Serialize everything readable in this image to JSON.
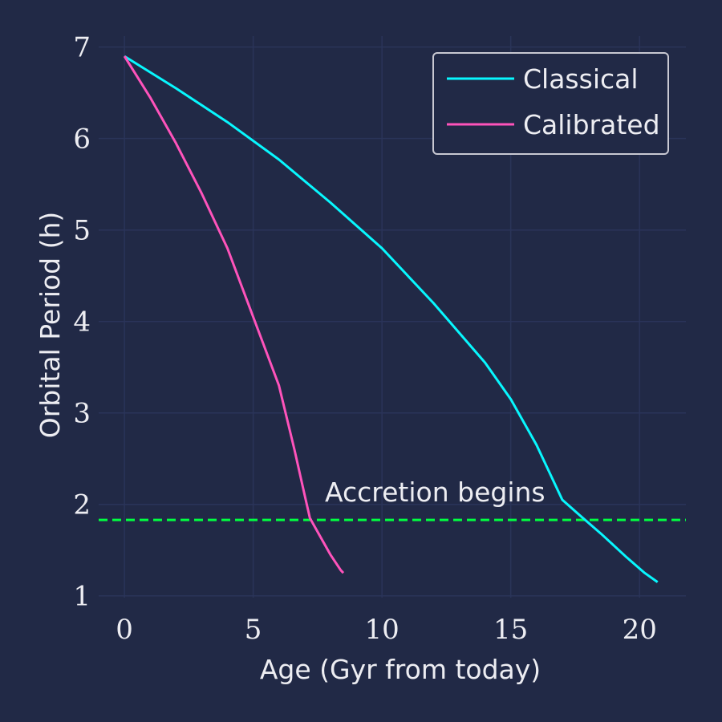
{
  "chart_data": {
    "type": "line",
    "xlabel": "Age (Gyr from today)",
    "ylabel": "Orbital Period (h)",
    "xlim": [
      -1.0,
      21.8
    ],
    "ylim": [
      0.98,
      7.12
    ],
    "xticks": [
      0,
      5,
      10,
      15,
      20
    ],
    "yticks": [
      1,
      2,
      3,
      4,
      5,
      6,
      7
    ],
    "grid": true,
    "legend_position": "top-right",
    "series": [
      {
        "name": "Classical",
        "color": "#08f7fe",
        "points": [
          [
            0,
            6.9
          ],
          [
            2,
            6.55
          ],
          [
            4,
            6.18
          ],
          [
            6,
            5.77
          ],
          [
            8,
            5.3
          ],
          [
            10,
            4.8
          ],
          [
            12,
            4.2
          ],
          [
            14,
            3.55
          ],
          [
            15,
            3.15
          ],
          [
            16,
            2.65
          ],
          [
            17,
            2.05
          ],
          [
            17.6,
            1.9
          ],
          [
            18.5,
            1.68
          ],
          [
            19.5,
            1.42
          ],
          [
            20.2,
            1.25
          ],
          [
            20.7,
            1.15
          ]
        ]
      },
      {
        "name": "Calibrated",
        "color": "#fe53bb",
        "points": [
          [
            0,
            6.9
          ],
          [
            1,
            6.45
          ],
          [
            2,
            5.95
          ],
          [
            3,
            5.4
          ],
          [
            4,
            4.8
          ],
          [
            5,
            4.05
          ],
          [
            6,
            3.3
          ],
          [
            6.6,
            2.6
          ],
          [
            7.0,
            2.1
          ],
          [
            7.2,
            1.85
          ],
          [
            7.6,
            1.65
          ],
          [
            8.0,
            1.45
          ],
          [
            8.4,
            1.28
          ],
          [
            8.5,
            1.25
          ]
        ]
      }
    ],
    "reference_line": {
      "y": 1.83,
      "color": "#00ff41",
      "style": "dashed",
      "label": "Accretion begins"
    }
  }
}
